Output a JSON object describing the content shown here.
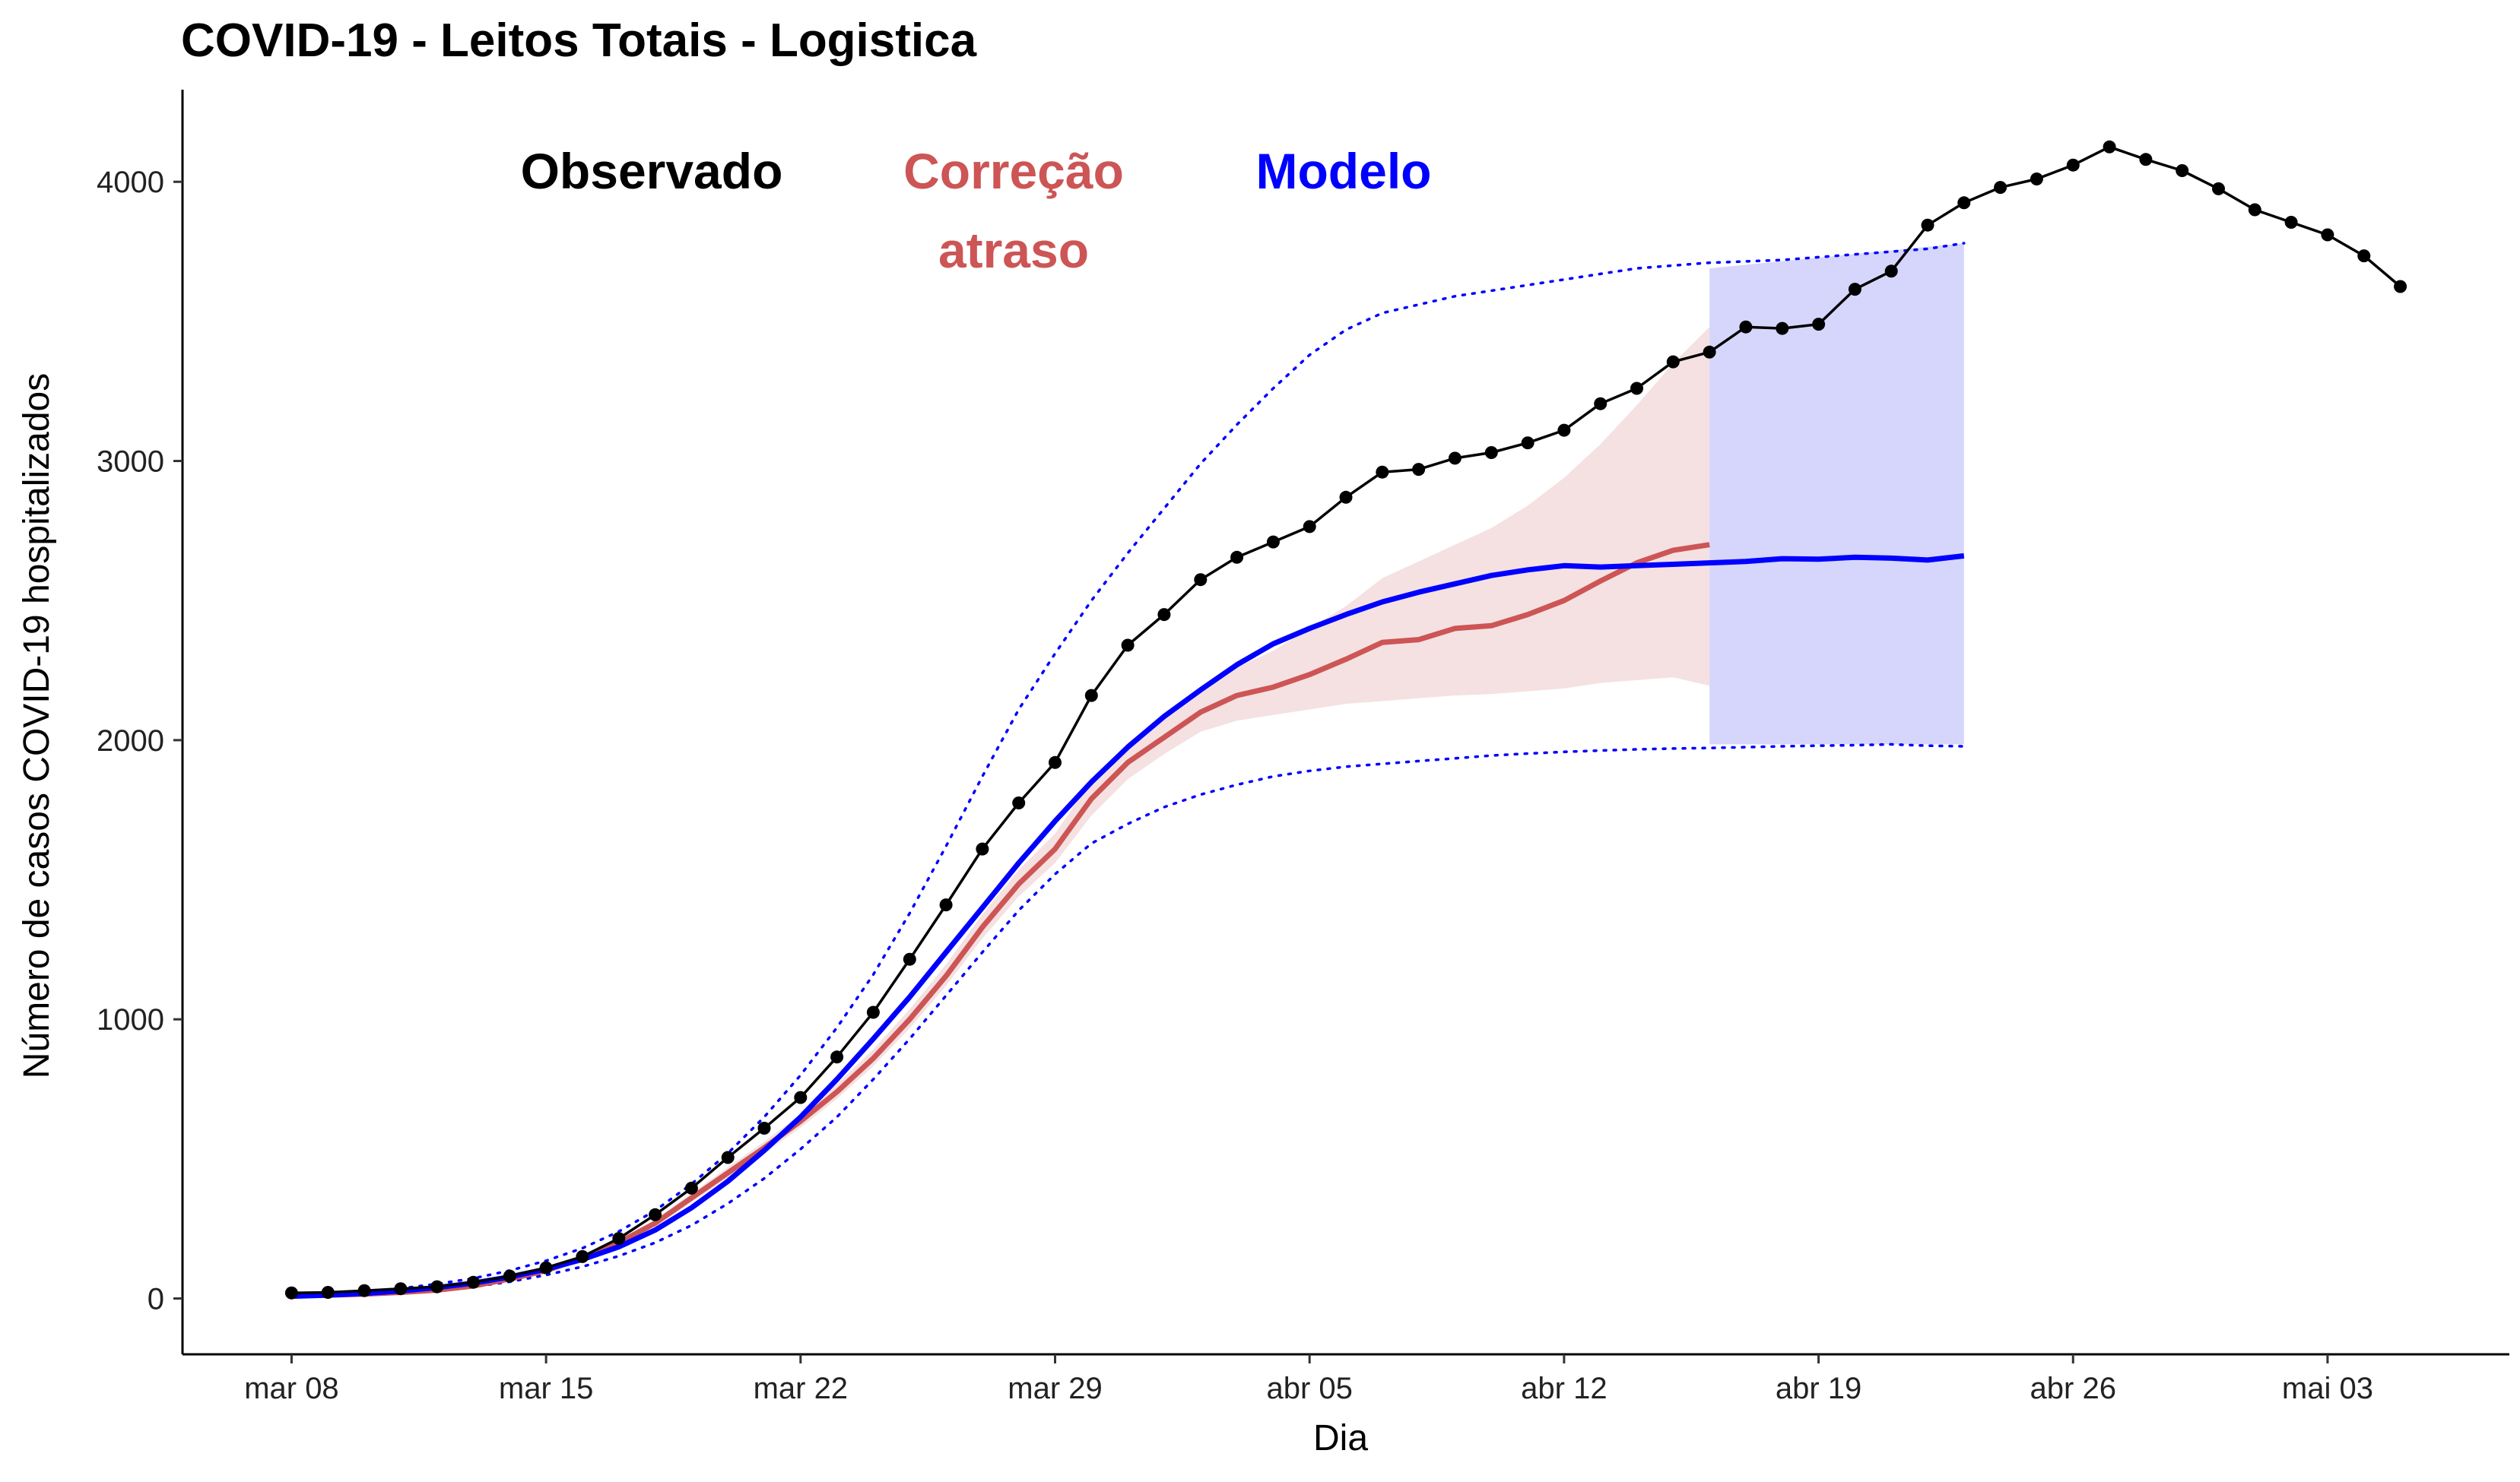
{
  "chart_data": {
    "type": "line",
    "title": "COVID-19 - Leitos Totais - Logistica",
    "xlabel": "Dia",
    "ylabel": "Número de casos COVID-19 hospitalizados",
    "x_start": "2020-03-08",
    "x_range": [
      "2020-03-05",
      "2020-05-08"
    ],
    "ylim": [
      -200,
      4330
    ],
    "y_ticks": [
      0,
      1000,
      2000,
      3000,
      4000
    ],
    "x_ticks": [
      {
        "label": "mar 08",
        "date": "2020-03-08"
      },
      {
        "label": "mar 15",
        "date": "2020-03-15"
      },
      {
        "label": "mar 22",
        "date": "2020-03-22"
      },
      {
        "label": "mar 29",
        "date": "2020-03-29"
      },
      {
        "label": "abr 05",
        "date": "2020-04-05"
      },
      {
        "label": "abr 12",
        "date": "2020-04-12"
      },
      {
        "label": "abr 19",
        "date": "2020-04-19"
      },
      {
        "label": "abr 26",
        "date": "2020-04-26"
      },
      {
        "label": "mai 03",
        "date": "2020-05-03"
      }
    ],
    "grid": false,
    "legend_labels": [
      {
        "text": [
          "Observado"
        ],
        "color": "#000000"
      },
      {
        "text": [
          "Correção",
          "atraso"
        ],
        "color": "#cd5555"
      },
      {
        "text": [
          "Modelo"
        ],
        "color": "#0000ff"
      }
    ],
    "colors": {
      "observado": "#000000",
      "correcao": "#cd5555",
      "correcao_band": "#f5e1e1",
      "modelo": "#0000ff",
      "modelo_band": "#d6d6fc"
    },
    "series": [
      {
        "name": "Observado",
        "dates_from": "2020-03-08",
        "values": [
          20,
          22,
          28,
          35,
          42,
          58,
          80,
          110,
          150,
          215,
          300,
          395,
          505,
          610,
          720,
          865,
          1025,
          1215,
          1410,
          1610,
          1775,
          1920,
          2160,
          2340,
          2450,
          2575,
          2655,
          2710,
          2765,
          2870,
          2960,
          2970,
          3010,
          3030,
          3065,
          3110,
          3205,
          3260,
          3355,
          3390,
          3480,
          3475,
          3490,
          3615,
          3680,
          3845,
          3925,
          3980,
          4010,
          4060,
          4125,
          4080,
          4040,
          3975,
          3900,
          3855,
          3810,
          3735,
          3625
        ]
      },
      {
        "name": "Correção atraso",
        "dates_from": "2020-03-08",
        "values": [
          10,
          12,
          16,
          22,
          30,
          45,
          70,
          100,
          145,
          200,
          270,
          360,
          450,
          540,
          635,
          740,
          860,
          1000,
          1155,
          1330,
          1485,
          1610,
          1790,
          1920,
          2010,
          2100,
          2160,
          2190,
          2235,
          2290,
          2350,
          2360,
          2400,
          2410,
          2450,
          2500,
          2570,
          2635,
          2680,
          2700
        ],
        "band_lower": [
          8,
          10,
          14,
          20,
          28,
          42,
          66,
          95,
          138,
          190,
          258,
          345,
          432,
          520,
          612,
          715,
          832,
          968,
          1120,
          1290,
          1440,
          1560,
          1730,
          1860,
          1950,
          2030,
          2070,
          2090,
          2110,
          2130,
          2140,
          2150,
          2160,
          2165,
          2175,
          2185,
          2205,
          2215,
          2225,
          2195
        ],
        "band_upper": [
          12,
          14,
          18,
          24,
          32,
          48,
          74,
          106,
          153,
          211,
          283,
          376,
          470,
          562,
          660,
          768,
          892,
          1036,
          1196,
          1376,
          1535,
          1665,
          1855,
          1990,
          2090,
          2190,
          2260,
          2320,
          2400,
          2480,
          2580,
          2640,
          2700,
          2760,
          2840,
          2940,
          3060,
          3200,
          3350,
          3480
        ]
      },
      {
        "name": "Modelo",
        "dates_from": "2020-03-08",
        "values": [
          8,
          12,
          18,
          27,
          39,
          55,
          77,
          105,
          140,
          185,
          245,
          325,
          420,
          530,
          650,
          785,
          930,
          1080,
          1240,
          1400,
          1560,
          1710,
          1850,
          1975,
          2085,
          2180,
          2270,
          2345,
          2400,
          2450,
          2495,
          2530,
          2560,
          2590,
          2610,
          2625,
          2620,
          2625,
          2630,
          2635,
          2640,
          2650,
          2648,
          2655,
          2652,
          2645,
          2660
        ],
        "dotted_lower": [
          6,
          9,
          13,
          20,
          30,
          42,
          60,
          84,
          114,
          152,
          200,
          262,
          340,
          430,
          535,
          650,
          785,
          930,
          1085,
          1240,
          1390,
          1520,
          1630,
          1700,
          1760,
          1805,
          1840,
          1870,
          1890,
          1905,
          1915,
          1925,
          1935,
          1945,
          1952,
          1958,
          1963,
          1967,
          1970,
          1972,
          1975,
          1978,
          1980,
          1982,
          1985,
          1980,
          1978
        ],
        "dotted_upper": [
          10,
          15,
          24,
          36,
          52,
          72,
          100,
          135,
          180,
          240,
          315,
          410,
          520,
          650,
          800,
          970,
          1160,
          1380,
          1620,
          1870,
          2110,
          2310,
          2500,
          2670,
          2830,
          2990,
          3130,
          3260,
          3380,
          3470,
          3530,
          3560,
          3590,
          3610,
          3630,
          3650,
          3670,
          3690,
          3700,
          3710,
          3715,
          3720,
          3730,
          3740,
          3750,
          3760,
          3780
        ],
        "forecast_band": {
          "from": "2020-04-16",
          "to": "2020-04-23",
          "lower": 1985,
          "upper_start": 3690,
          "upper_end": 3780
        }
      }
    ]
  }
}
